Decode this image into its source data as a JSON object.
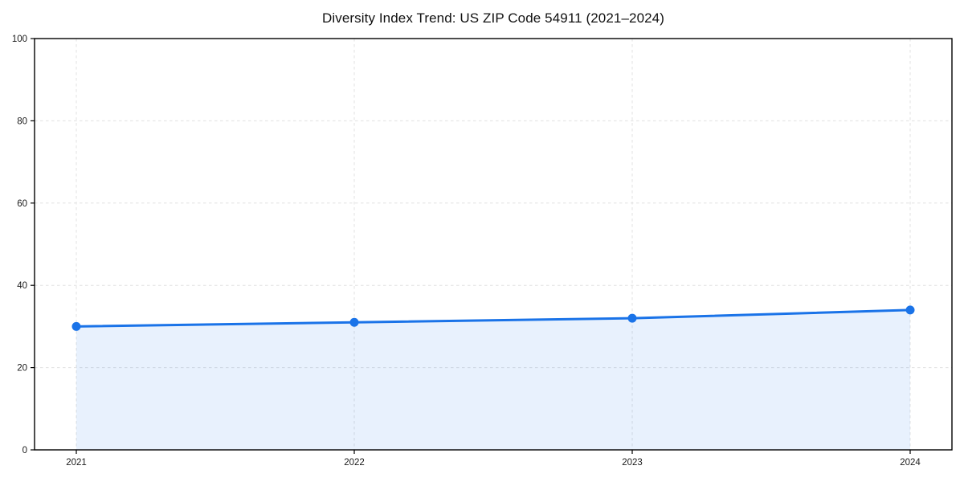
{
  "chart_data": {
    "type": "line",
    "title": "Diversity Index Trend: US ZIP Code 54911 (2021–2024)",
    "categories": [
      "2021",
      "2022",
      "2023",
      "2024"
    ],
    "values": [
      30,
      31,
      32,
      34
    ],
    "xlabel": "",
    "ylabel": "",
    "ylim": [
      0,
      100
    ],
    "y_ticks": [
      0,
      20,
      40,
      60,
      80,
      100
    ],
    "grid": "dashed-both-axes",
    "legend_position": "none",
    "marker": "circle",
    "area_fill": true
  },
  "colors": {
    "line": "#1a73e8",
    "area_fill": "rgba(26,115,232,0.10)",
    "grid": "#e0e0e0",
    "axis": "#000000",
    "tick_text": "#1a1a1a",
    "title_text": "#111111",
    "background": "#ffffff"
  }
}
